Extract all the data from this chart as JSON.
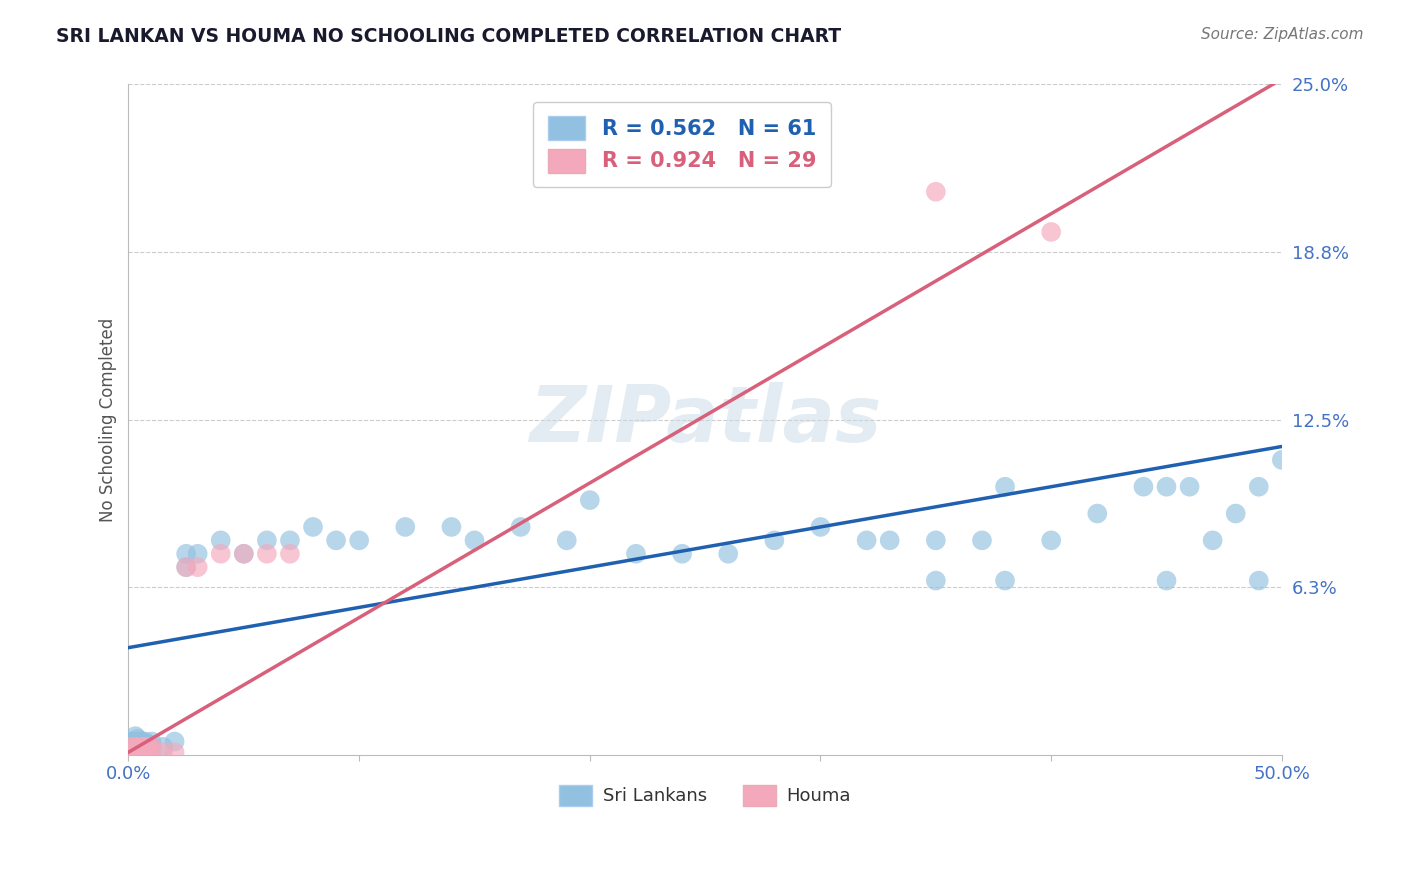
{
  "title": "SRI LANKAN VS HOUMA NO SCHOOLING COMPLETED CORRELATION CHART",
  "source": "Source: ZipAtlas.com",
  "ylabel": "No Schooling Completed",
  "xlim": [
    0.0,
    0.5
  ],
  "ylim": [
    0.0,
    0.25
  ],
  "blue_color": "#92c0e0",
  "pink_color": "#f4a8bb",
  "blue_line_color": "#2060b0",
  "pink_line_color": "#d8607a",
  "legend_r_blue": "R = 0.562",
  "legend_n_blue": "N = 61",
  "legend_r_pink": "R = 0.924",
  "legend_n_pink": "N = 29",
  "blue_line_start_x": 0.0,
  "blue_line_start_y": 0.04,
  "blue_line_end_x": 0.5,
  "blue_line_end_y": 0.115,
  "pink_line_start_x": 0.0,
  "pink_line_start_y": 0.001,
  "pink_line_end_x": 0.5,
  "pink_line_end_y": 0.252,
  "sri_x": [
    0.001,
    0.001,
    0.002,
    0.002,
    0.003,
    0.003,
    0.004,
    0.004,
    0.005,
    0.005,
    0.006,
    0.006,
    0.007,
    0.007,
    0.008,
    0.008,
    0.009,
    0.009,
    0.01,
    0.01,
    0.015,
    0.02,
    0.025,
    0.025,
    0.03,
    0.04,
    0.05,
    0.06,
    0.07,
    0.08,
    0.09,
    0.1,
    0.12,
    0.14,
    0.15,
    0.17,
    0.19,
    0.2,
    0.22,
    0.24,
    0.26,
    0.28,
    0.3,
    0.32,
    0.33,
    0.35,
    0.37,
    0.38,
    0.4,
    0.42,
    0.44,
    0.45,
    0.46,
    0.47,
    0.48,
    0.49,
    0.5,
    0.35,
    0.38,
    0.45,
    0.49
  ],
  "sri_y": [
    0.005,
    0.003,
    0.005,
    0.003,
    0.007,
    0.004,
    0.006,
    0.003,
    0.005,
    0.003,
    0.005,
    0.003,
    0.005,
    0.003,
    0.004,
    0.003,
    0.004,
    0.003,
    0.005,
    0.003,
    0.003,
    0.005,
    0.07,
    0.075,
    0.075,
    0.08,
    0.075,
    0.08,
    0.08,
    0.085,
    0.08,
    0.08,
    0.085,
    0.085,
    0.08,
    0.085,
    0.08,
    0.095,
    0.075,
    0.075,
    0.075,
    0.08,
    0.085,
    0.08,
    0.08,
    0.08,
    0.08,
    0.1,
    0.08,
    0.09,
    0.1,
    0.1,
    0.1,
    0.08,
    0.09,
    0.1,
    0.11,
    0.065,
    0.065,
    0.065,
    0.065
  ],
  "houma_x": [
    0.001,
    0.001,
    0.002,
    0.002,
    0.003,
    0.003,
    0.004,
    0.004,
    0.005,
    0.005,
    0.006,
    0.006,
    0.007,
    0.007,
    0.008,
    0.008,
    0.009,
    0.01,
    0.01,
    0.015,
    0.02,
    0.025,
    0.03,
    0.04,
    0.05,
    0.06,
    0.07,
    0.35,
    0.4
  ],
  "houma_y": [
    0.003,
    0.001,
    0.003,
    0.001,
    0.003,
    0.001,
    0.003,
    0.001,
    0.003,
    0.001,
    0.003,
    0.001,
    0.003,
    0.001,
    0.003,
    0.001,
    0.003,
    0.003,
    0.001,
    0.001,
    0.001,
    0.07,
    0.07,
    0.075,
    0.075,
    0.075,
    0.075,
    0.21,
    0.195
  ]
}
